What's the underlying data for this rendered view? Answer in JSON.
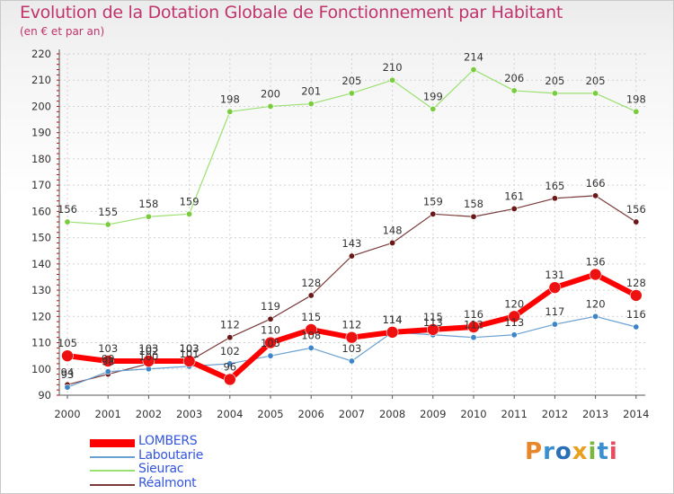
{
  "header": {
    "title": "Evolution de la Dotation Globale de Fonctionnement par Habitant",
    "subtitle": "(en € et par an)"
  },
  "logo": {
    "text": "Proxiti"
  },
  "chart_data": {
    "type": "line",
    "title": "Evolution de la Dotation Globale de Fonctionnement par Habitant",
    "subtitle": "(en € et par an)",
    "xlabel": "",
    "ylabel": "",
    "x": [
      2000,
      2001,
      2002,
      2003,
      2004,
      2005,
      2006,
      2007,
      2008,
      2009,
      2010,
      2011,
      2012,
      2013,
      2014
    ],
    "ylim": [
      90,
      220
    ],
    "yticks": [
      90,
      100,
      110,
      120,
      130,
      140,
      150,
      160,
      170,
      180,
      190,
      200,
      210,
      220
    ],
    "grid": true,
    "legend_position": "bottom-left",
    "series": [
      {
        "name": "LOMBERS",
        "color": "#ff0000",
        "marker_color": "#ee1111",
        "values": [
          105,
          103,
          103,
          103,
          96,
          110,
          115,
          112,
          114,
          115,
          116,
          120,
          131,
          136,
          128
        ]
      },
      {
        "name": "Laboutarie",
        "color": "#6aa0d0",
        "marker_color": "#3d85c6",
        "values": [
          93,
          99,
          100,
          101,
          102,
          105,
          108,
          103,
          114,
          113,
          112,
          113,
          117,
          120,
          116
        ]
      },
      {
        "name": "Sieurac",
        "color": "#9be071",
        "marker_color": "#79cc3e",
        "values": [
          156,
          155,
          158,
          159,
          198,
          200,
          201,
          205,
          210,
          199,
          214,
          206,
          205,
          205,
          198
        ]
      },
      {
        "name": "Réalmont",
        "color": "#7a3a3a",
        "marker_color": "#6b1818",
        "values": [
          94,
          98,
          102,
          103,
          112,
          119,
          128,
          143,
          148,
          159,
          158,
          161,
          165,
          166,
          156
        ]
      }
    ]
  }
}
